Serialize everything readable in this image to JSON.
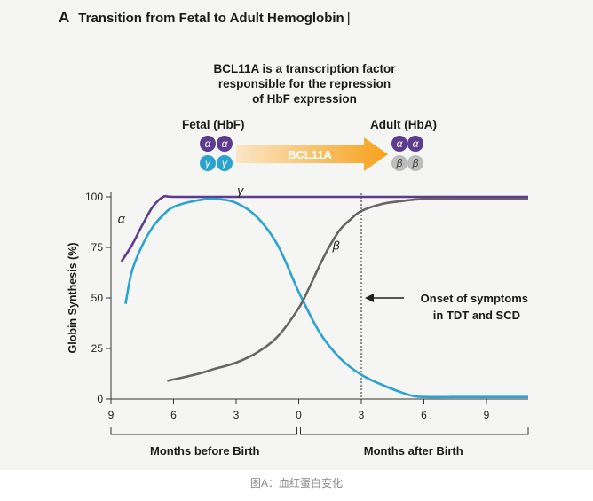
{
  "figure": {
    "letter": "A",
    "title": "Transition from Fetal to Adult Hemoglobin",
    "headline_lines": [
      "BCL11A is a transcription factor",
      "responsible for the repression",
      "of HbF expression"
    ],
    "fetal_label": "Fetal (HbF)",
    "adult_label": "Adult (HbA)",
    "arrow_label": "BCL11A",
    "alpha_symbol": "α",
    "beta_symbol": "β",
    "gamma_symbol": "γ",
    "caption": "图A：血红蛋白变化"
  },
  "colors": {
    "alpha": "#5b3c8e",
    "gamma": "#2aa3cf",
    "beta": "#666666",
    "arrow_start": "#fbe6c5",
    "arrow_end": "#f7a11a",
    "beta_circle": "#bdbdbd"
  },
  "chart_data": {
    "type": "line",
    "ylabel": "Globin Synthesis (%)",
    "xlabel_left": "Months before Birth",
    "xlabel_right": "Months after Birth",
    "x_ticks": [
      "9",
      "6",
      "3",
      "0",
      "3",
      "6",
      "9"
    ],
    "x_tick_values": [
      -9,
      -6,
      -3,
      0,
      3,
      6,
      9
    ],
    "y_ticks": [
      0,
      25,
      50,
      75,
      100
    ],
    "xlim": [
      -9,
      11
    ],
    "ylim": [
      0,
      100
    ],
    "grid": false,
    "series": [
      {
        "name": "α",
        "x": [
          -8.5,
          -8,
          -7.5,
          -7,
          -6.5,
          -6,
          -4,
          0,
          4,
          8,
          11
        ],
        "y": [
          68,
          76,
          86,
          95,
          100,
          100,
          100,
          100,
          100,
          100,
          100
        ]
      },
      {
        "name": "γ",
        "x": [
          -8.3,
          -8,
          -7.5,
          -7,
          -6.5,
          -6,
          -5,
          -4,
          -3,
          -2,
          -1,
          0,
          1,
          2,
          3,
          4,
          5,
          5.5,
          6,
          8,
          11
        ],
        "y": [
          47,
          63,
          76,
          85,
          91,
          95,
          98,
          99,
          97,
          90,
          76,
          53,
          33,
          20,
          12,
          7,
          3,
          1.5,
          1,
          1,
          1
        ]
      },
      {
        "name": "β",
        "x": [
          -6.3,
          -5,
          -4,
          -3,
          -2,
          -1,
          0,
          0.5,
          1,
          1.5,
          2,
          2.5,
          3,
          4,
          5,
          6,
          8,
          11
        ],
        "y": [
          9,
          12,
          15,
          18,
          23,
          31,
          45,
          55,
          66,
          76,
          84,
          89,
          93,
          96.5,
          98,
          99,
          99,
          99
        ]
      }
    ],
    "onset_x": 3,
    "annotation_lines": [
      "Onset of symptoms",
      "in TDT and SCD"
    ]
  }
}
